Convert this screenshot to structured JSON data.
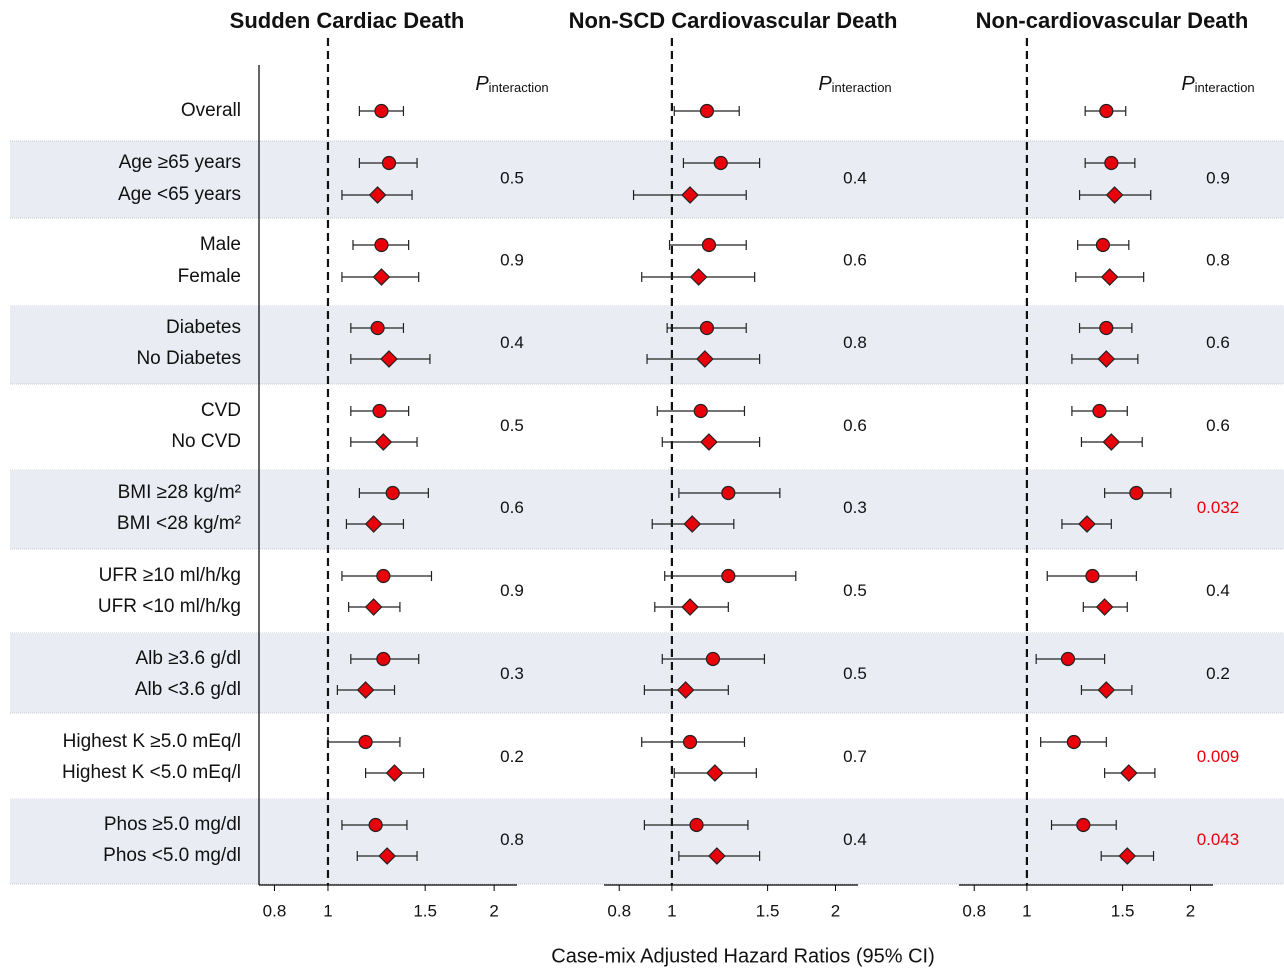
{
  "categories": [
    "Overall",
    "Age ≥65 years",
    "Age <65 years",
    "Male",
    "Female",
    "Diabetes",
    "No Diabetes",
    "CVD",
    "No CVD",
    "BMI ≥28 kg/m²",
    "BMI <28 kg/m²",
    "UFR ≥10 ml/h/kg",
    "UFR <10 ml/h/kg",
    "Alb ≥3.6 g/dl",
    "Alb <3.6 g/dl",
    "Highest K ≥5.0 mEq/l",
    "Highest K <5.0 mEq/l",
    "Phos ≥5.0 mg/dl",
    "Phos <5.0 mg/dl"
  ],
  "x_label": "Case-mix Adjusted Hazard Ratios (95% CI)",
  "p_label": "P",
  "p_subscript": "interaction",
  "chart_data": [
    {
      "type": "forest",
      "title": "Sudden Cardiac Death",
      "xlim": [
        0.75,
        2.2
      ],
      "xticks": [
        0.8,
        1,
        1.5,
        2
      ],
      "log_x": true,
      "ref_line": 1,
      "color": "#e8000b",
      "highlight_below": 0.05,
      "highlight_color": "#e8000b",
      "values": [
        1.25,
        1.29,
        1.23,
        1.25,
        1.25,
        1.23,
        1.29,
        1.24,
        1.26,
        1.31,
        1.21,
        1.26,
        1.21,
        1.26,
        1.17,
        1.17,
        1.32,
        1.22,
        1.28
      ],
      "lower": [
        1.14,
        1.14,
        1.06,
        1.11,
        1.06,
        1.1,
        1.1,
        1.1,
        1.1,
        1.14,
        1.08,
        1.06,
        1.09,
        1.1,
        1.04,
        1.0,
        1.17,
        1.06,
        1.13
      ],
      "upper": [
        1.37,
        1.45,
        1.42,
        1.4,
        1.46,
        1.37,
        1.53,
        1.4,
        1.45,
        1.52,
        1.37,
        1.54,
        1.35,
        1.46,
        1.32,
        1.35,
        1.49,
        1.39,
        1.45
      ],
      "p_values": [
        0.5,
        0.9,
        0.4,
        0.5,
        0.6,
        0.9,
        0.3,
        0.2,
        0.8
      ]
    },
    {
      "type": "forest",
      "title": "Non-SCD Cardiovascular Death",
      "xlim": [
        0.75,
        2.2
      ],
      "xticks": [
        0.8,
        1,
        1.5,
        2
      ],
      "log_x": true,
      "ref_line": 1,
      "color": "#e8000b",
      "highlight_below": 0.05,
      "highlight_color": "#e8000b",
      "values": [
        1.16,
        1.23,
        1.08,
        1.17,
        1.12,
        1.16,
        1.15,
        1.13,
        1.17,
        1.27,
        1.09,
        1.27,
        1.08,
        1.19,
        1.06,
        1.08,
        1.2,
        1.11,
        1.21
      ],
      "lower": [
        1.01,
        1.05,
        0.85,
        0.99,
        0.88,
        0.98,
        0.9,
        0.94,
        0.96,
        1.03,
        0.92,
        0.97,
        0.93,
        0.96,
        0.89,
        0.88,
        1.01,
        0.89,
        1.03
      ],
      "upper": [
        1.33,
        1.45,
        1.37,
        1.37,
        1.42,
        1.37,
        1.45,
        1.36,
        1.45,
        1.58,
        1.3,
        1.69,
        1.27,
        1.48,
        1.27,
        1.36,
        1.43,
        1.38,
        1.45
      ],
      "p_values": [
        0.4,
        0.6,
        0.8,
        0.6,
        0.3,
        0.5,
        0.5,
        0.7,
        0.4
      ]
    },
    {
      "type": "forest",
      "title": "Non-cardiovascular Death",
      "xlim": [
        0.75,
        2.2
      ],
      "xticks": [
        0.8,
        1,
        1.5,
        2
      ],
      "log_x": true,
      "ref_line": 1,
      "color": "#e8000b",
      "highlight_below": 0.05,
      "highlight_color": "#e8000b",
      "values": [
        1.4,
        1.43,
        1.45,
        1.38,
        1.42,
        1.4,
        1.4,
        1.36,
        1.43,
        1.59,
        1.29,
        1.32,
        1.39,
        1.19,
        1.4,
        1.22,
        1.54,
        1.27,
        1.53
      ],
      "lower": [
        1.28,
        1.28,
        1.25,
        1.24,
        1.23,
        1.25,
        1.21,
        1.21,
        1.26,
        1.39,
        1.16,
        1.09,
        1.27,
        1.04,
        1.26,
        1.06,
        1.39,
        1.11,
        1.37
      ],
      "upper": [
        1.52,
        1.58,
        1.69,
        1.54,
        1.64,
        1.56,
        1.6,
        1.53,
        1.63,
        1.84,
        1.43,
        1.59,
        1.53,
        1.39,
        1.56,
        1.4,
        1.72,
        1.46,
        1.71
      ],
      "p_values": [
        0.9,
        0.8,
        0.6,
        0.6,
        0.032,
        0.4,
        0.2,
        0.009,
        0.043
      ]
    }
  ]
}
